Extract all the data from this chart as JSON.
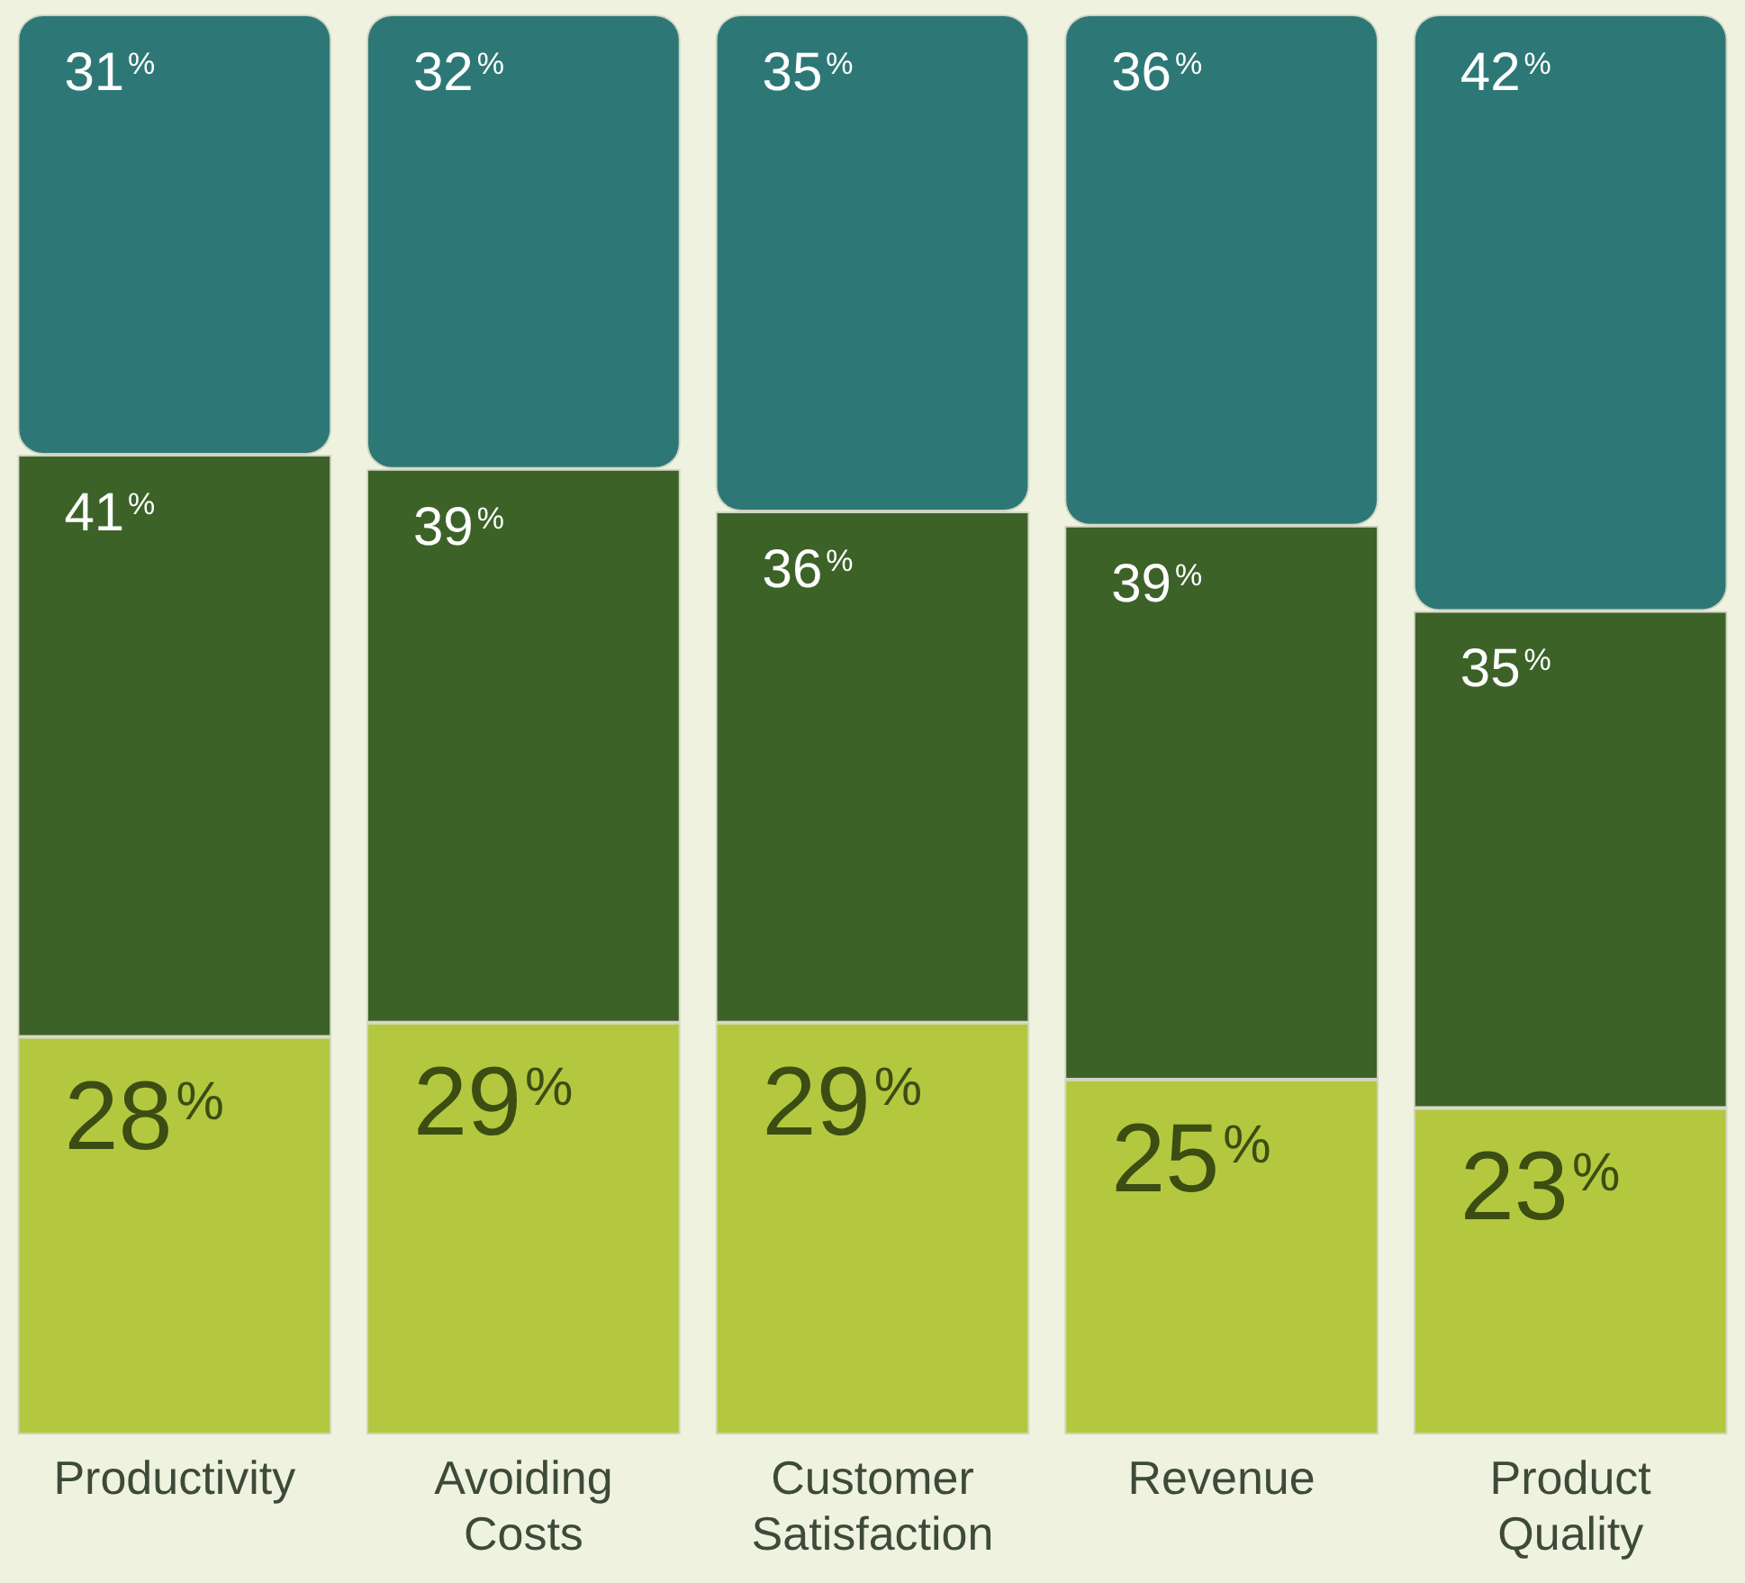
{
  "chart_data": {
    "type": "bar",
    "stacked": true,
    "categories": [
      "Productivity",
      "Avoiding Costs",
      "Customer Satisfaction",
      "Revenue",
      "Product Quality"
    ],
    "series": [
      {
        "color": "#b3c83f",
        "values": [
          28,
          29,
          29,
          25,
          23
        ],
        "value_labels": [
          "28%",
          "29%",
          "29%",
          "25%",
          "23%"
        ]
      },
      {
        "color": "#3c6228",
        "values": [
          41,
          39,
          36,
          39,
          35
        ],
        "value_labels": [
          "41%",
          "39%",
          "36%",
          "39%",
          "35%"
        ]
      },
      {
        "color": "#2d7876",
        "values": [
          31,
          32,
          35,
          36,
          42
        ],
        "value_labels": [
          "31%",
          "32%",
          "35%",
          "36%",
          "42%"
        ]
      }
    ],
    "ylim": [
      0,
      100
    ],
    "tick_labels": "x",
    "grid": false,
    "legend": false
  }
}
